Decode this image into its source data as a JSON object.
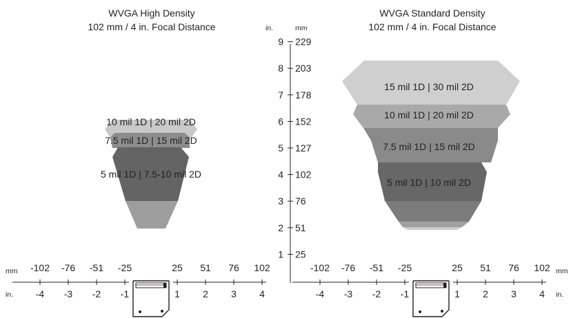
{
  "left_panel": {
    "title": "WVGA High Density",
    "subtitle": "102 mm / 4 in. Focal Distance",
    "zones": [
      {
        "label": "10 mil 1D | 20 mil 2D",
        "color": "#c9c9c9"
      },
      {
        "label": "7.5 mil 1D | 15 mil 2D",
        "color": "#8d8d8d"
      },
      {
        "label": "5 mil 1D | 7.5-10 mil 2D",
        "color": "#646464"
      },
      {
        "label": "",
        "color": "#9e9e9e"
      }
    ]
  },
  "right_panel": {
    "title": "WVGA Standard Density",
    "subtitle": "102 mm / 4 in. Focal Distance",
    "zones": [
      {
        "label": "15 mil 1D | 30 mil 2D",
        "color": "#cfcfcf"
      },
      {
        "label": "10 mil 1D | 20 mil 2D",
        "color": "#a9a9a9"
      },
      {
        "label": "7.5 mil 1D | 15 mil 2D",
        "color": "#8a8a8a"
      },
      {
        "label": "5 mil 1D | 10 mil 2D",
        "color": "#676767"
      },
      {
        "label": "",
        "color": "#7c7c7c"
      },
      {
        "label": "",
        "color": "#a0a0a0"
      },
      {
        "label": "",
        "color": "#cccccc"
      }
    ]
  },
  "vertical_axis": {
    "unit_in": "in.",
    "unit_mm": "mm",
    "inches": [
      "1",
      "2",
      "3",
      "4",
      "5",
      "6",
      "7",
      "8",
      "9"
    ],
    "mm": [
      "25",
      "51",
      "76",
      "102",
      "127",
      "152",
      "178",
      "203",
      "229"
    ]
  },
  "horizontal_axis": {
    "unit_mm": "mm",
    "unit_in": "in.",
    "left_mm": [
      "-102",
      "-76",
      "-51",
      "-25",
      "25",
      "51",
      "76",
      "102"
    ],
    "left_in": [
      "-4",
      "-3",
      "-2",
      "-1",
      "1",
      "2",
      "3",
      "4"
    ],
    "right_mm": [
      "-102",
      "-76",
      "-51",
      "-25",
      "25",
      "51",
      "76",
      "102"
    ],
    "right_in": [
      "-4",
      "-3",
      "-2",
      "-1",
      "1",
      "2",
      "3",
      "4"
    ],
    "right_unit_mm": "mm",
    "right_unit_in": "in."
  },
  "colors": {
    "text": "#231f20",
    "axis": "#231f20"
  }
}
